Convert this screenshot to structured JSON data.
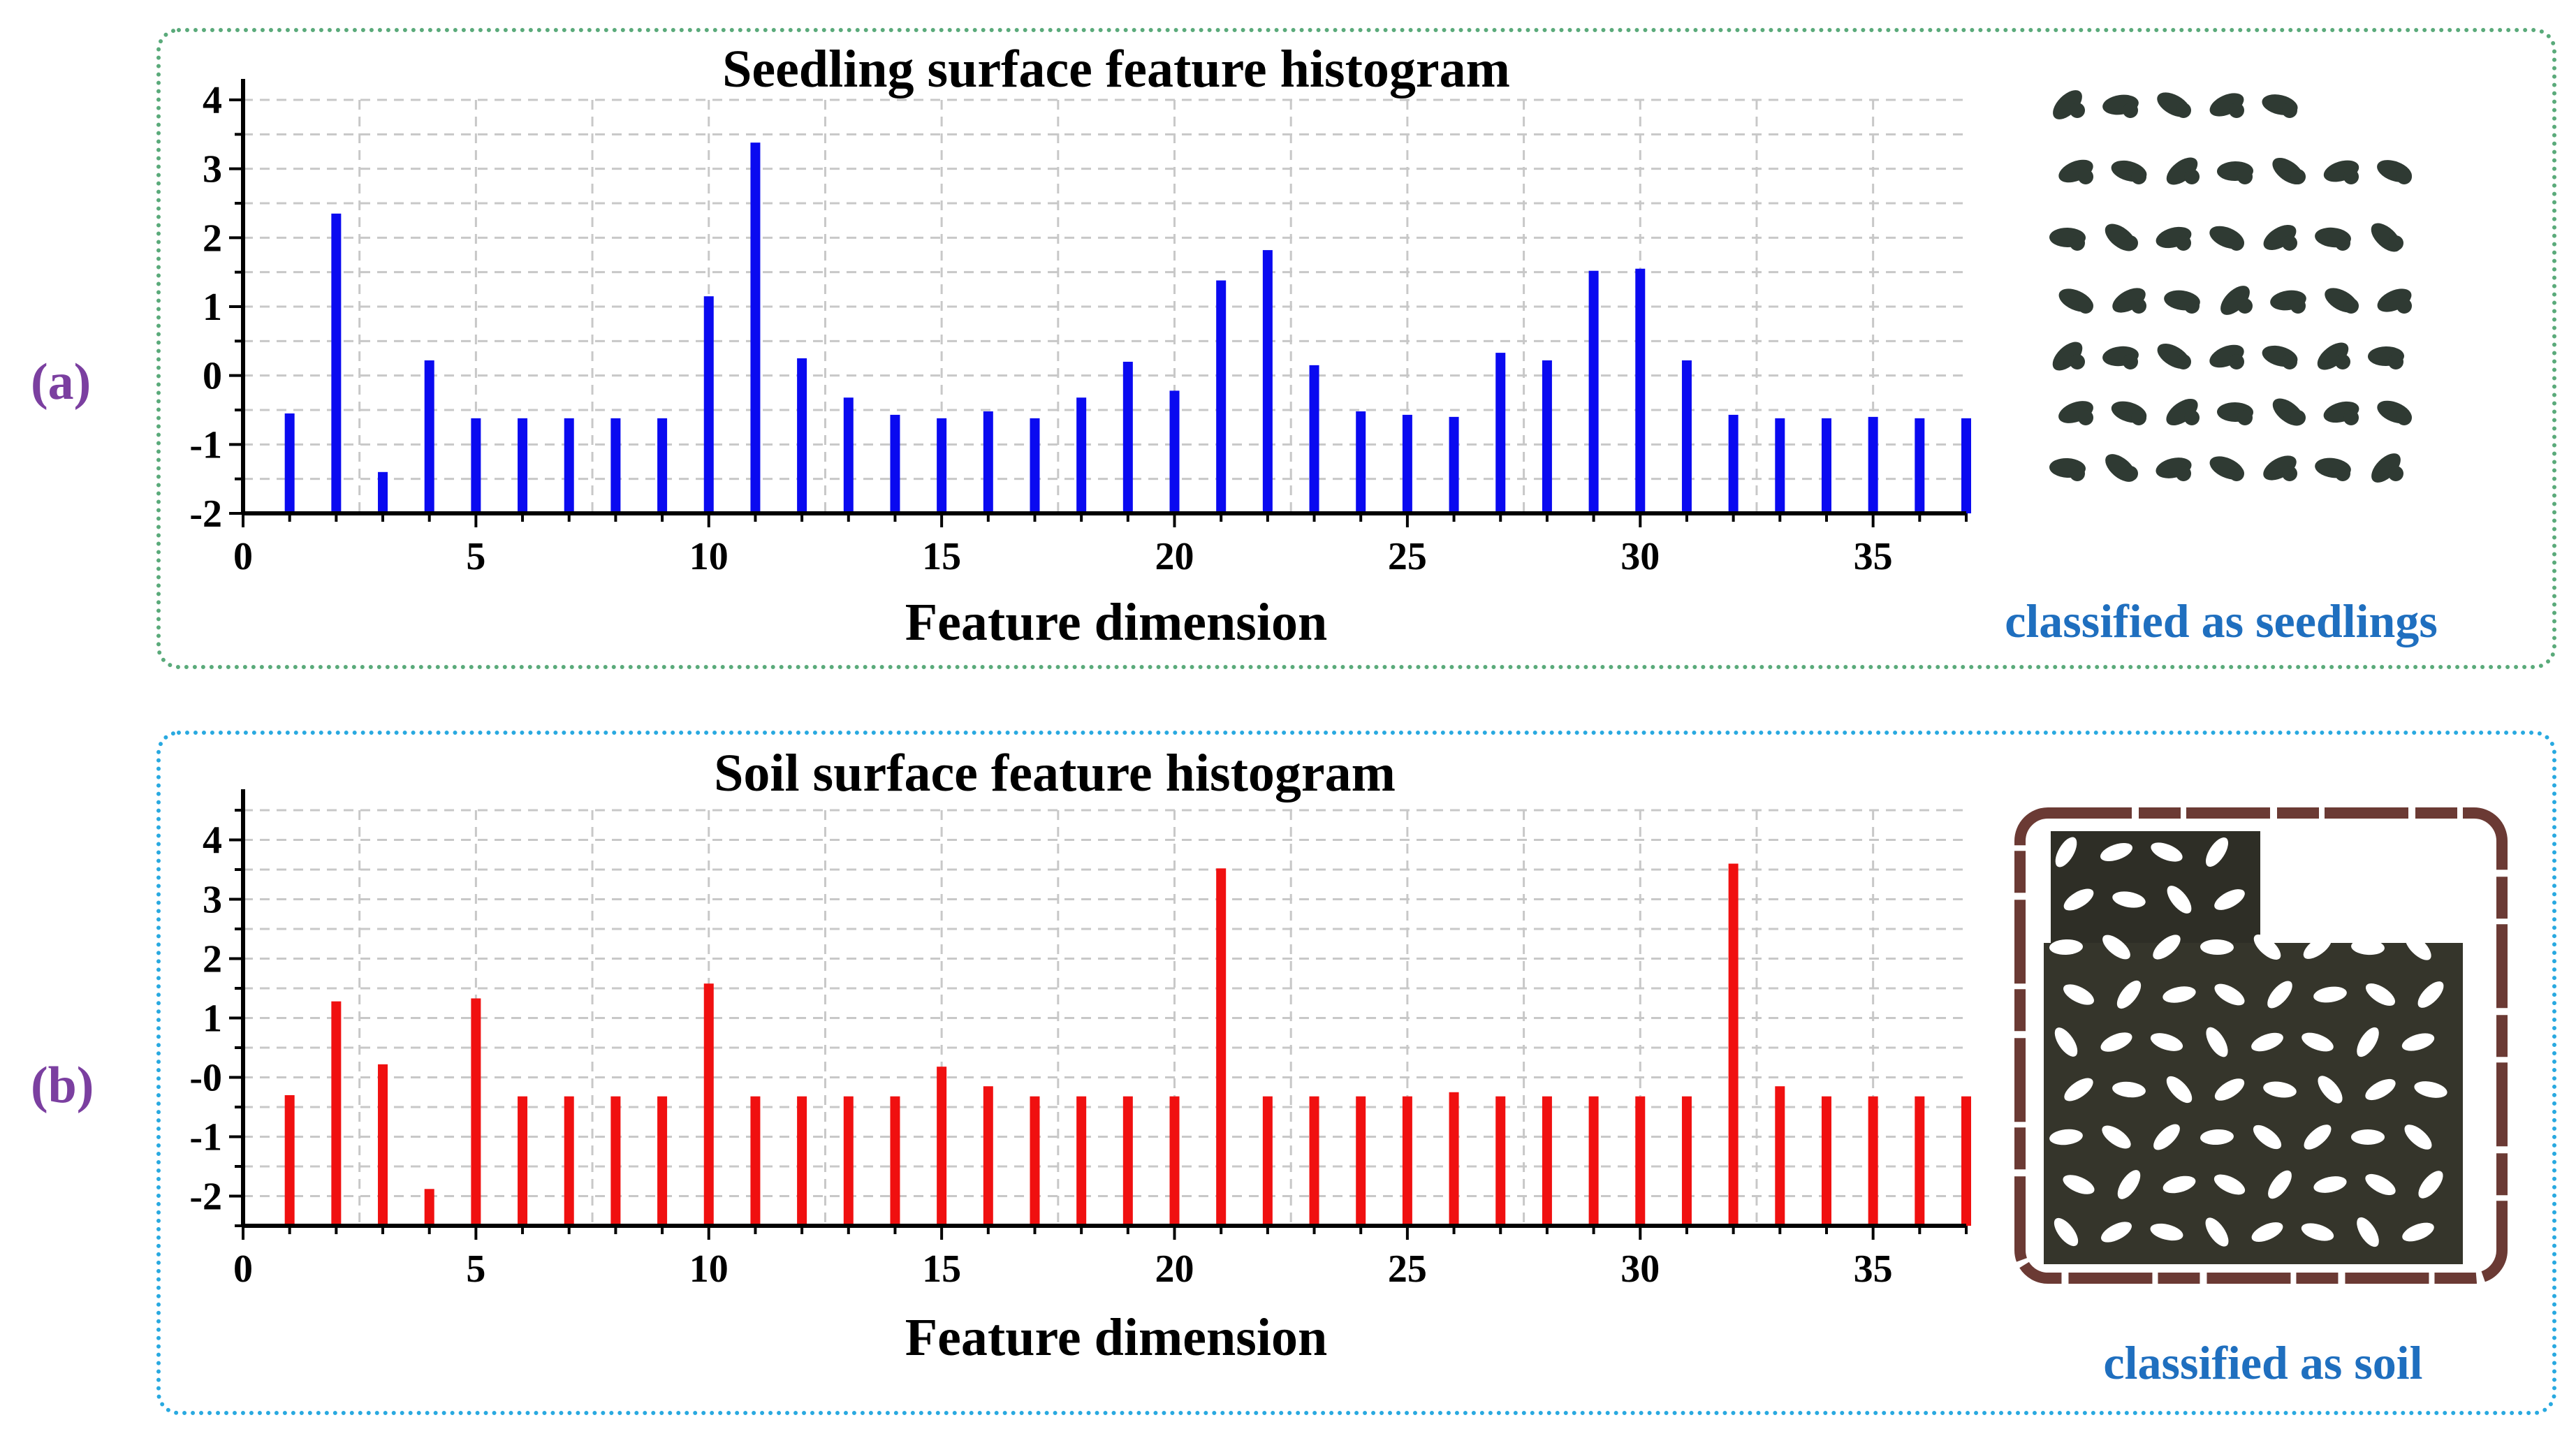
{
  "panels": {
    "a": {
      "label": "(a)",
      "caption": "classified as seedlings",
      "frame_color": "#5aaa7a",
      "label_color": "#7b3fa0",
      "caption_color": "#1f6fbf"
    },
    "b": {
      "label": "(b)",
      "caption": "classified as soil",
      "frame_color": "#29a9e0",
      "label_color": "#7b3fa0",
      "caption_color": "#1f6fbf"
    }
  },
  "chart_data": [
    {
      "type": "bar",
      "title": "Seedling surface feature histogram",
      "xlabel": "Feature dimension",
      "ylabel": "",
      "color": "#0a0af0",
      "xlim": [
        0,
        37
      ],
      "ylim": [
        -2,
        4
      ],
      "xticks": [
        0,
        5,
        10,
        15,
        20,
        25,
        30,
        35
      ],
      "yticks": [
        -2,
        -1,
        0,
        1,
        2,
        3,
        4
      ],
      "ytick_labels": [
        "-2",
        "-1",
        "0",
        "1",
        "2",
        "3",
        "4"
      ],
      "grid": true,
      "x": [
        1,
        2,
        3,
        4,
        5,
        6,
        7,
        8,
        9,
        10,
        11,
        12,
        13,
        14,
        15,
        16,
        17,
        18,
        19,
        20,
        21,
        22,
        23,
        24,
        25,
        26,
        27,
        28,
        29,
        30,
        31,
        32,
        33,
        34,
        35,
        36,
        37
      ],
      "values": [
        -0.55,
        2.35,
        -1.4,
        0.22,
        -0.62,
        -0.62,
        -0.62,
        -0.62,
        -0.62,
        1.15,
        3.38,
        0.25,
        -0.32,
        -0.57,
        -0.62,
        -0.52,
        -0.62,
        -0.32,
        0.2,
        -0.22,
        1.38,
        1.82,
        0.15,
        -0.52,
        -0.57,
        -0.6,
        0.33,
        0.22,
        1.52,
        1.55,
        0.22,
        -0.57,
        -0.62,
        -0.62,
        -0.6,
        -0.62,
        -0.62
      ]
    },
    {
      "type": "bar",
      "title": "Soil surface feature histogram",
      "xlabel": "Feature dimension",
      "ylabel": "",
      "color": "#f01010",
      "xlim": [
        0,
        37
      ],
      "ylim": [
        -2.5,
        4.5
      ],
      "xticks": [
        0,
        5,
        10,
        15,
        20,
        25,
        30,
        35
      ],
      "yticks": [
        -2,
        -1,
        0,
        1,
        2,
        3,
        4
      ],
      "ytick_labels": [
        "-2",
        "-1",
        "-0",
        "1",
        "2",
        "3",
        "4"
      ],
      "grid": true,
      "x": [
        1,
        2,
        3,
        4,
        5,
        6,
        7,
        8,
        9,
        10,
        11,
        12,
        13,
        14,
        15,
        16,
        17,
        18,
        19,
        20,
        21,
        22,
        23,
        24,
        25,
        26,
        27,
        28,
        29,
        30,
        31,
        32,
        33,
        34,
        35,
        36,
        37
      ],
      "values": [
        -0.3,
        1.28,
        0.22,
        -1.88,
        1.33,
        -0.32,
        -0.32,
        -0.32,
        -0.32,
        1.58,
        -0.32,
        -0.32,
        -0.32,
        -0.32,
        0.18,
        -0.15,
        -0.32,
        -0.32,
        -0.32,
        -0.32,
        3.52,
        -0.32,
        -0.32,
        -0.32,
        -0.32,
        -0.25,
        -0.32,
        -0.32,
        -0.32,
        -0.32,
        -0.32,
        3.6,
        -0.15,
        -0.32,
        -0.32,
        -0.32,
        -0.32
      ]
    }
  ]
}
